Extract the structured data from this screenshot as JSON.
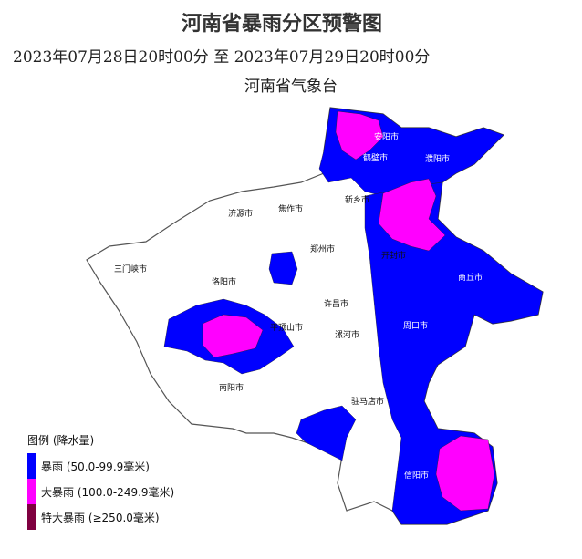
{
  "header": {
    "title": "河南省暴雨分区预警图",
    "period": "2023年07月28日20时00分 至 2023年07月29日20时00分",
    "issuer": "河南省气象台"
  },
  "colors": {
    "rainstorm": "#0000ff",
    "heavy_rainstorm": "#ff00ff",
    "extreme_rainstorm": "#7f0040",
    "none": "#ffffff",
    "border": "#444444"
  },
  "legend": {
    "title": "图例 (降水量)",
    "items": [
      {
        "label": "暴雨 (50.0-99.9毫米)",
        "color": "#0000ff"
      },
      {
        "label": "大暴雨 (100.0-249.9毫米)",
        "color": "#ff00ff"
      },
      {
        "label": "特大暴雨 (≥250.0毫米)",
        "color": "#7f0040"
      }
    ]
  },
  "cities": [
    "安阳市",
    "鹤壁市",
    "濮阳市",
    "新乡市",
    "焦作市",
    "济源市",
    "郑州市",
    "开封市",
    "三门峡市",
    "洛阳市",
    "商丘市",
    "许昌市",
    "平顶山市",
    "漯河市",
    "周口市",
    "南阳市",
    "驻马店市",
    "信阳市"
  ]
}
